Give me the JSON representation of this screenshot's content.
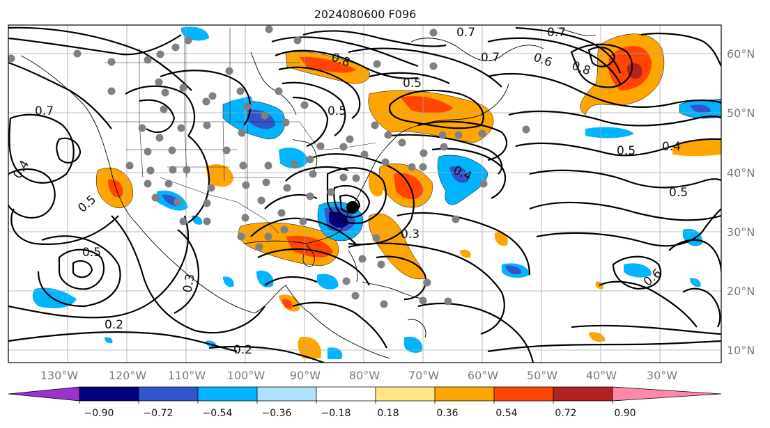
{
  "title": "2024080600 F096",
  "lon_labels": [
    "130°W",
    "120°W",
    "110°W",
    "100°W",
    "90°W",
    "80°W",
    "70°W",
    "60°W",
    "50°W",
    "40°W",
    "30°W"
  ],
  "lat_labels": [
    "60°N",
    "50°N",
    "40°N",
    "30°N",
    "20°N",
    "10°N"
  ],
  "colorbar": {
    "ticks": [
      "−0.90",
      "−0.72",
      "−0.54",
      "−0.36",
      "−0.18",
      "0.18",
      "0.36",
      "0.54",
      "0.72",
      "0.90"
    ],
    "colors": [
      "#9933cc",
      "#000080",
      "#3355cc",
      "#00b4ff",
      "#aee0ff",
      "#ffffff",
      "#ffe680",
      "#ffa500",
      "#ff4500",
      "#b22222",
      "#ff88aa"
    ]
  },
  "contour_labels": [
    "0.2",
    "0.2",
    "0.3",
    "0.3",
    "0.4",
    "0.4",
    "0.4",
    "0.5",
    "0.5",
    "0.5",
    "0.5",
    "0.5",
    "0.5",
    "0.6",
    "0.6",
    "0.7",
    "0.7",
    "0.7",
    "0.7",
    "0.8",
    "0.8"
  ],
  "storm_marker": "storm-center"
}
